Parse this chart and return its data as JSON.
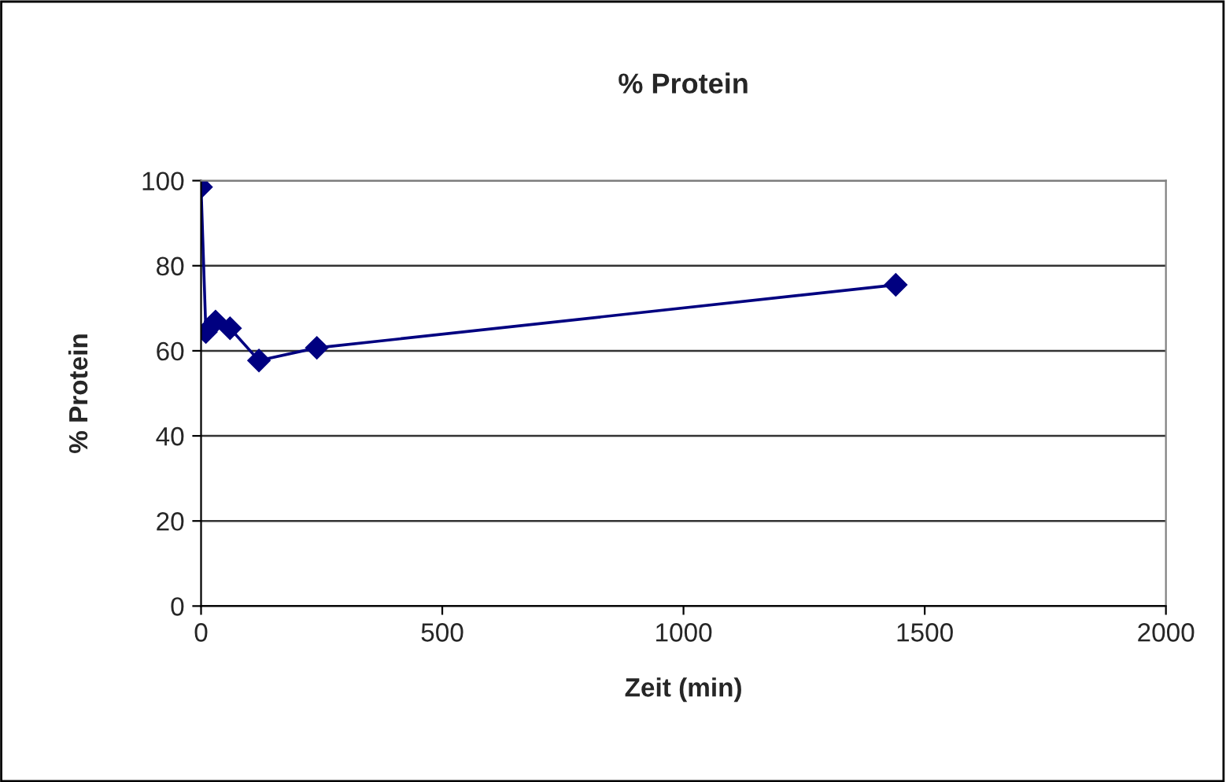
{
  "chart_data": {
    "type": "line",
    "title": "% Protein",
    "xlabel": "Zeit (min)",
    "ylabel": "% Protein",
    "x": [
      0,
      10,
      30,
      60,
      120,
      240,
      1440
    ],
    "series": [
      {
        "color": "#000080",
        "values": [
          98.5,
          64.4,
          66.9,
          65.3,
          57.7,
          60.7,
          75.5
        ]
      }
    ],
    "xlim": [
      0,
      2000
    ],
    "xticks": [
      0,
      500,
      1000,
      1500,
      2000
    ],
    "ylim": [
      0,
      100
    ],
    "yticks": [
      0,
      20,
      40,
      60,
      80,
      100
    ],
    "grid": "y",
    "marker": "diamond",
    "line_style": "solid"
  }
}
